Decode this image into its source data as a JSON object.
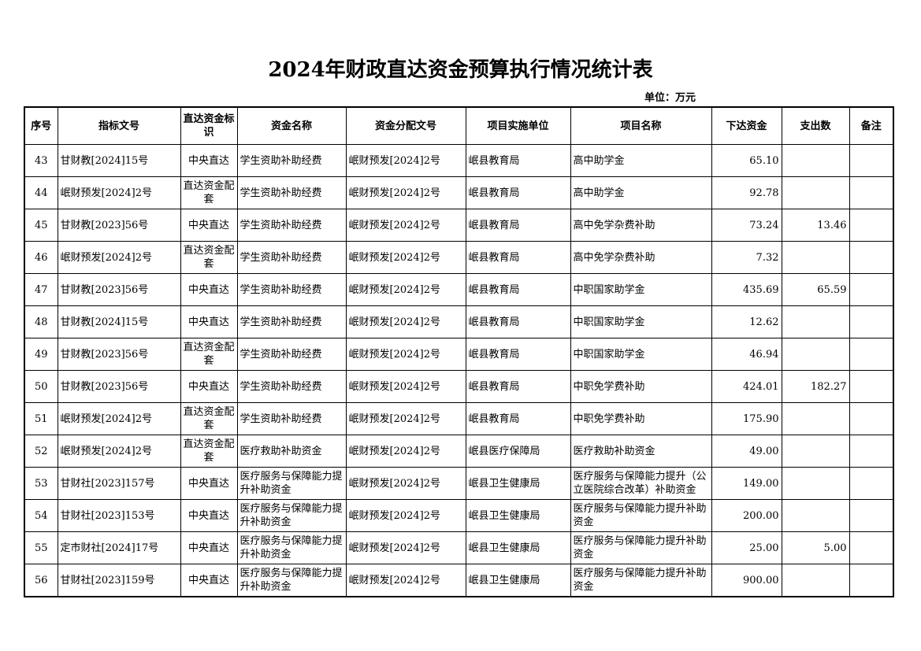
{
  "title": "2024年财政直达资金预算执行情况统计表",
  "unit": "单位：万元",
  "headers": [
    "序号",
    "指标文号",
    "直达资金标识",
    "资金名称",
    "资金分配文号",
    "项目实施单位",
    "项目名称",
    "下达资金",
    "支出数",
    "备注"
  ],
  "rows": [
    [
      "43",
      "甘财教[2024]15号",
      "中央直达",
      "学生资助补助经费",
      "岷财预发[2024]2号",
      "岷县教育局",
      "高中助学金",
      "65.10",
      "",
      ""
    ],
    [
      "44",
      "岷财预发[2024]2号",
      "直达资金配套",
      "学生资助补助经费",
      "岷财预发[2024]2号",
      "岷县教育局",
      "高中助学金",
      "92.78",
      "",
      ""
    ],
    [
      "45",
      "甘财教[2023]56号",
      "中央直达",
      "学生资助补助经费",
      "岷财预发[2024]2号",
      "岷县教育局",
      "高中免学杂费补助",
      "73.24",
      "13.46",
      ""
    ],
    [
      "46",
      "岷财预发[2024]2号",
      "直达资金配套",
      "学生资助补助经费",
      "岷财预发[2024]2号",
      "岷县教育局",
      "高中免学杂费补助",
      "7.32",
      "",
      ""
    ],
    [
      "47",
      "甘财教[2023]56号",
      "中央直达",
      "学生资助补助经费",
      "岷财预发[2024]2号",
      "岷县教育局",
      "中职国家助学金",
      "435.69",
      "65.59",
      ""
    ],
    [
      "48",
      "甘财教[2024]15号",
      "中央直达",
      "学生资助补助经费",
      "岷财预发[2024]2号",
      "岷县教育局",
      "中职国家助学金",
      "12.62",
      "",
      ""
    ],
    [
      "49",
      "甘财教[2023]56号",
      "直达资金配套",
      "学生资助补助经费",
      "岷财预发[2024]2号",
      "岷县教育局",
      "中职国家助学金",
      "46.94",
      "",
      ""
    ],
    [
      "50",
      "甘财教[2023]56号",
      "中央直达",
      "学生资助补助经费",
      "岷财预发[2024]2号",
      "岷县教育局",
      "中职免学费补助",
      "424.01",
      "182.27",
      ""
    ],
    [
      "51",
      "岷财预发[2024]2号",
      "直达资金配套",
      "学生资助补助经费",
      "岷财预发[2024]2号",
      "岷县教育局",
      "中职免学费补助",
      "175.90",
      "",
      ""
    ],
    [
      "52",
      "岷财预发[2024]2号",
      "直达资金配套",
      "医疗救助补助资金",
      "岷财预发[2024]2号",
      "岷县医疗保障局",
      "医疗救助补助资金",
      "49.00",
      "",
      ""
    ],
    [
      "53",
      "甘财社[2023]157号",
      "中央直达",
      "医疗服务与保障能力提升补助资金",
      "岷财预发[2024]2号",
      "岷县卫生健康局",
      "医疗服务与保障能力提升（公立医院综合改革）补助资金",
      "149.00",
      "",
      ""
    ],
    [
      "54",
      "甘财社[2023]153号",
      "中央直达",
      "医疗服务与保障能力提升补助资金",
      "岷财预发[2024]2号",
      "岷县卫生健康局",
      "医疗服务与保障能力提升补助资金",
      "200.00",
      "",
      ""
    ],
    [
      "55",
      "定市财社[2024]17号",
      "中央直达",
      "医疗服务与保障能力提升补助资金",
      "岷财预发[2024]2号",
      "岷县卫生健康局",
      "医疗服务与保障能力提升补助资金",
      "25.00",
      "5.00",
      ""
    ],
    [
      "56",
      "甘财社[2023]159号",
      "中央直达",
      "医疗服务与保障能力提升补助资金",
      "岷财预发[2024]2号",
      "岷县卫生健康局",
      "医疗服务与保障能力提升补助资金",
      "900.00",
      "",
      ""
    ]
  ]
}
